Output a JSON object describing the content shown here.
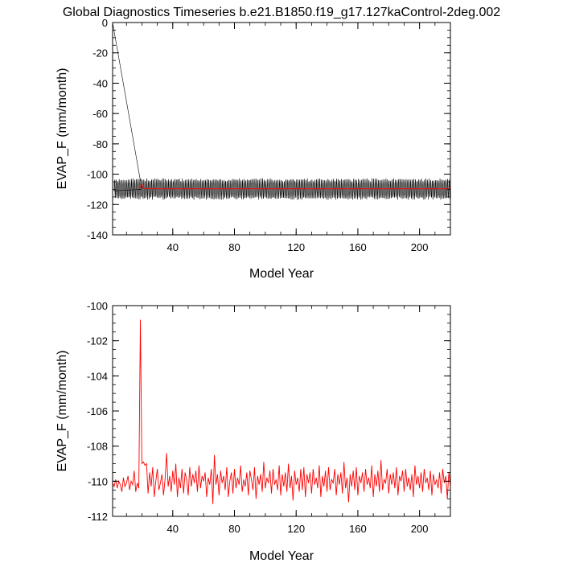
{
  "title": "Global Diagnostics Timeseries b.e21.B1850.f19_g17.127kaControl-2deg.002",
  "colors": {
    "monthly": "#000000",
    "annual": "#ff0000",
    "frame": "#000000"
  },
  "chart_data": [
    {
      "type": "line",
      "xlabel": "Model Year",
      "ylabel": "EVAP_F (mm/month)",
      "xlim": [
        1,
        220
      ],
      "ylim": [
        -140,
        0
      ],
      "xticks": [
        40,
        80,
        120,
        160,
        200
      ],
      "yticks": [
        0,
        -20,
        -40,
        -60,
        -80,
        -100,
        -120,
        -140
      ],
      "series": [
        {
          "color": "#000000",
          "style": "monthly",
          "segments": [
            {
              "x": [
                1,
                20
              ],
              "y": [
                0,
                -110
              ]
            },
            {
              "x_start": 2,
              "x_end": 220,
              "center": -109.8,
              "amplitude": 6,
              "samples_per_year": 12
            }
          ]
        },
        {
          "color": "#ff0000",
          "style": "annual",
          "points": [
            [
              18,
              -109.5
            ],
            [
              19,
              -108.8
            ],
            [
              20,
              -106.5
            ],
            [
              21,
              -109.2
            ],
            [
              25,
              -109.6
            ],
            [
              220,
              -109.6
            ]
          ]
        }
      ]
    },
    {
      "type": "line",
      "xlabel": "Model Year",
      "ylabel": "EVAP_F (mm/month)",
      "xlim": [
        1,
        220
      ],
      "ylim": [
        -112,
        -100
      ],
      "xticks": [
        40,
        80,
        120,
        160,
        200
      ],
      "yticks": [
        -100,
        -102,
        -104,
        -106,
        -108,
        -110,
        -112
      ],
      "series": [
        {
          "color": "#ff0000",
          "x_start": 1,
          "y": [
            -110.1,
            -110.3,
            -109.9,
            -110.4,
            -110.0,
            -110.2,
            -110.6,
            -109.8,
            -110.3,
            -110.1,
            -109.7,
            -110.5,
            -110.0,
            -110.2,
            -109.4,
            -110.6,
            -110.1,
            -110.4,
            -100.8,
            -109.0,
            -108.9,
            -109.1,
            -109.0,
            -110.7,
            -109.5,
            -110.3,
            -109.2,
            -110.9,
            -110.0,
            -109.3,
            -110.5,
            -110.1,
            -109.6,
            -110.8,
            -109.9,
            -108.4,
            -110.3,
            -109.7,
            -110.6,
            -109.4,
            -110.2,
            -109.0,
            -110.9,
            -109.8,
            -110.4,
            -109.3,
            -110.7,
            -109.5,
            -109.9,
            -110.8,
            -109.2,
            -110.3,
            -109.6,
            -110.1,
            -109.4,
            -110.6,
            -109.1,
            -110.4,
            -109.7,
            -110.0,
            -109.5,
            -110.9,
            -109.8,
            -110.2,
            -109.3,
            -111.3,
            -108.5,
            -110.2,
            -109.6,
            -110.8,
            -109.4,
            -110.1,
            -109.7,
            -110.5,
            -109.2,
            -110.9,
            -110.0,
            -109.5,
            -110.7,
            -109.3,
            -110.4,
            -109.8,
            -110.2,
            -109.1,
            -110.6,
            -109.9,
            -110.3,
            -109.5,
            -110.8,
            -109.4,
            -109.9,
            -110.5,
            -109.2,
            -111.0,
            -109.7,
            -110.2,
            -109.6,
            -110.6,
            -108.9,
            -110.4,
            -109.8,
            -110.1,
            -109.4,
            -110.7,
            -109.3,
            -110.2,
            -109.9,
            -110.5,
            -109.1,
            -110.8,
            -109.6,
            -110.3,
            -109.5,
            -110.6,
            -109.0,
            -110.4,
            -109.7,
            -111.1,
            -109.4,
            -110.2,
            -109.8,
            -110.6,
            -109.3,
            -110.5,
            -109.2,
            -110.9,
            -109.6,
            -110.1,
            -109.5,
            -110.7,
            -109.3,
            -110.2,
            -109.8,
            -110.4,
            -109.1,
            -110.9,
            -109.7,
            -110.3,
            -109.4,
            -110.6,
            -109.2,
            -110.5,
            -109.9,
            -110.1,
            -109.3,
            -110.8,
            -109.6,
            -110.2,
            -109.5,
            -110.7,
            -108.9,
            -110.4,
            -109.8,
            -111.2,
            -109.6,
            -110.3,
            -109.4,
            -110.5,
            -109.2,
            -110.8,
            -109.7,
            -110.1,
            -109.5,
            -110.6,
            -109.3,
            -110.2,
            -109.8,
            -110.4,
            -109.1,
            -110.9,
            -109.6,
            -110.3,
            -109.4,
            -110.6,
            -108.8,
            -110.5,
            -109.9,
            -110.1,
            -109.3,
            -110.7,
            -109.6,
            -110.2,
            -109.5,
            -110.4,
            -109.2,
            -110.8,
            -109.7,
            -110.0,
            -109.4,
            -110.6,
            -109.3,
            -110.3,
            -109.8,
            -110.5,
            -109.6,
            -110.9,
            -109.1,
            -110.2,
            -109.7,
            -110.4,
            -109.5,
            -110.6,
            -109.3,
            -110.1,
            -109.8,
            -110.5,
            -109.4,
            -110.8,
            -109.6,
            -110.2,
            -109.9,
            -110.4,
            -109.5,
            -110.7,
            -109.3,
            -110.1,
            -109.7,
            -111.0,
            -109.5,
            -110.3
          ]
        }
      ]
    }
  ]
}
